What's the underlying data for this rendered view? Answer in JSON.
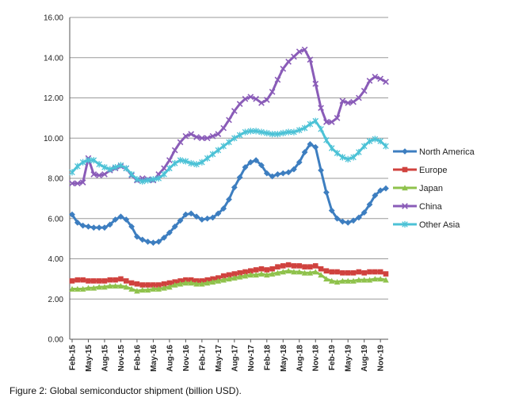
{
  "caption": "Figure 2: Global semiconductor shipment (billion USD).",
  "chart_data": {
    "type": "line",
    "ylim": [
      0,
      16
    ],
    "y_ticks": [
      "0.00",
      "2.00",
      "4.00",
      "6.00",
      "8.00",
      "10.00",
      "12.00",
      "14.00",
      "16.00"
    ],
    "x_tick_labels": [
      "Feb-15",
      "May-15",
      "Aug-15",
      "Nov-15",
      "Feb-16",
      "May-16",
      "Aug-16",
      "Nov-16",
      "Feb-17",
      "May-17",
      "Aug-17",
      "Nov-17",
      "Feb-18",
      "May-18",
      "Aug-18",
      "Nov-18",
      "Feb-19",
      "May-19",
      "Aug-19",
      "Nov-19"
    ],
    "grid": "horizontal",
    "legend_position": "right",
    "x_months": [
      "Feb-15",
      "Mar-15",
      "Apr-15",
      "May-15",
      "Jun-15",
      "Jul-15",
      "Aug-15",
      "Sep-15",
      "Oct-15",
      "Nov-15",
      "Dec-15",
      "Jan-16",
      "Feb-16",
      "Mar-16",
      "Apr-16",
      "May-16",
      "Jun-16",
      "Jul-16",
      "Aug-16",
      "Sep-16",
      "Oct-16",
      "Nov-16",
      "Dec-16",
      "Jan-17",
      "Feb-17",
      "Mar-17",
      "Apr-17",
      "May-17",
      "Jun-17",
      "Jul-17",
      "Aug-17",
      "Sep-17",
      "Oct-17",
      "Nov-17",
      "Dec-17",
      "Jan-18",
      "Feb-18",
      "Mar-18",
      "Apr-18",
      "May-18",
      "Jun-18",
      "Jul-18",
      "Aug-18",
      "Sep-18",
      "Oct-18",
      "Nov-18",
      "Dec-18",
      "Jan-19",
      "Feb-19",
      "Mar-19",
      "Apr-19",
      "May-19",
      "Jun-19",
      "Jul-19",
      "Aug-19",
      "Sep-19",
      "Oct-19",
      "Nov-19",
      "Dec-19"
    ],
    "series": [
      {
        "name": "North America",
        "color": "#3d7ec0",
        "marker": "diamond",
        "values": [
          6.2,
          5.8,
          5.65,
          5.6,
          5.55,
          5.55,
          5.55,
          5.7,
          5.95,
          6.1,
          5.95,
          5.6,
          5.1,
          4.95,
          4.85,
          4.8,
          4.85,
          5.05,
          5.3,
          5.6,
          5.9,
          6.2,
          6.25,
          6.1,
          5.95,
          6.0,
          6.05,
          6.25,
          6.5,
          6.95,
          7.55,
          8.05,
          8.55,
          8.8,
          8.9,
          8.65,
          8.25,
          8.1,
          8.2,
          8.25,
          8.3,
          8.45,
          8.8,
          9.3,
          9.7,
          9.55,
          8.4,
          7.3,
          6.4,
          6.0,
          5.85,
          5.8,
          5.9,
          6.05,
          6.3,
          6.7,
          7.15,
          7.4,
          7.5
        ]
      },
      {
        "name": "Europe",
        "color": "#d0423e",
        "marker": "square",
        "values": [
          2.9,
          2.95,
          2.95,
          2.9,
          2.9,
          2.9,
          2.9,
          2.95,
          2.95,
          3.0,
          2.9,
          2.8,
          2.75,
          2.7,
          2.7,
          2.7,
          2.7,
          2.75,
          2.8,
          2.85,
          2.9,
          2.95,
          2.95,
          2.9,
          2.9,
          2.95,
          3.0,
          3.05,
          3.15,
          3.2,
          3.25,
          3.3,
          3.35,
          3.4,
          3.45,
          3.5,
          3.45,
          3.5,
          3.6,
          3.65,
          3.7,
          3.65,
          3.65,
          3.6,
          3.6,
          3.65,
          3.5,
          3.4,
          3.35,
          3.35,
          3.3,
          3.3,
          3.3,
          3.35,
          3.3,
          3.35,
          3.35,
          3.35,
          3.25
        ]
      },
      {
        "name": "Japan",
        "color": "#8fc24c",
        "marker": "triangle",
        "values": [
          2.5,
          2.5,
          2.5,
          2.55,
          2.55,
          2.6,
          2.6,
          2.65,
          2.65,
          2.65,
          2.6,
          2.5,
          2.4,
          2.45,
          2.45,
          2.5,
          2.5,
          2.55,
          2.6,
          2.7,
          2.75,
          2.8,
          2.8,
          2.75,
          2.75,
          2.8,
          2.85,
          2.9,
          2.95,
          3.0,
          3.05,
          3.1,
          3.15,
          3.2,
          3.2,
          3.25,
          3.2,
          3.25,
          3.3,
          3.35,
          3.4,
          3.35,
          3.35,
          3.3,
          3.3,
          3.35,
          3.2,
          3.0,
          2.9,
          2.85,
          2.9,
          2.9,
          2.9,
          2.95,
          2.95,
          2.95,
          3.0,
          3.0,
          2.95
        ]
      },
      {
        "name": "China",
        "color": "#8a5cb8",
        "marker": "x",
        "values": [
          7.75,
          7.75,
          7.8,
          9.0,
          8.2,
          8.15,
          8.2,
          8.4,
          8.5,
          8.6,
          8.5,
          8.15,
          7.9,
          8.0,
          7.95,
          7.9,
          8.2,
          8.5,
          8.9,
          9.4,
          9.8,
          10.1,
          10.2,
          10.05,
          10.0,
          10.0,
          10.1,
          10.2,
          10.5,
          10.9,
          11.35,
          11.7,
          11.95,
          12.05,
          11.95,
          11.75,
          11.9,
          12.3,
          12.9,
          13.45,
          13.8,
          14.05,
          14.3,
          14.4,
          13.9,
          12.7,
          11.5,
          10.8,
          10.8,
          11.0,
          11.85,
          11.75,
          11.8,
          12.0,
          12.35,
          12.85,
          13.05,
          12.95,
          12.8
        ]
      },
      {
        "name": "Other Asia",
        "color": "#4cc2d6",
        "marker": "star",
        "values": [
          8.3,
          8.6,
          8.8,
          8.9,
          8.9,
          8.7,
          8.55,
          8.45,
          8.55,
          8.65,
          8.5,
          8.2,
          7.95,
          7.85,
          7.9,
          7.95,
          8.0,
          8.2,
          8.5,
          8.75,
          8.9,
          8.85,
          8.75,
          8.7,
          8.8,
          9.0,
          9.2,
          9.4,
          9.6,
          9.8,
          10.0,
          10.15,
          10.3,
          10.35,
          10.35,
          10.3,
          10.25,
          10.2,
          10.2,
          10.25,
          10.3,
          10.3,
          10.4,
          10.5,
          10.7,
          10.85,
          10.45,
          9.9,
          9.5,
          9.25,
          9.05,
          8.95,
          9.05,
          9.3,
          9.6,
          9.85,
          9.95,
          9.85,
          9.6
        ]
      }
    ]
  }
}
